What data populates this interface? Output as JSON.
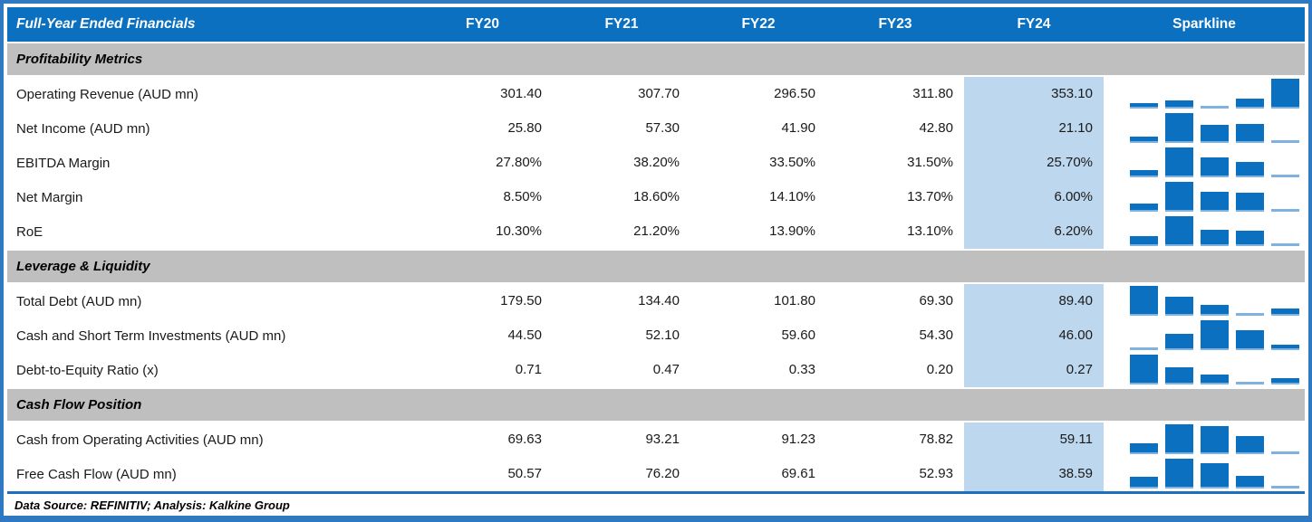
{
  "header": {
    "title": "Full-Year Ended Financials",
    "years": [
      "FY20",
      "FY21",
      "FY22",
      "FY23",
      "FY24"
    ],
    "sparkline_label": "Sparkline"
  },
  "chart_data": {
    "type": "table",
    "title": "Full-Year Ended Financials",
    "columns": [
      "FY20",
      "FY21",
      "FY22",
      "FY23",
      "FY24",
      "Sparkline"
    ],
    "highlighted_column": "FY24",
    "sparkline_style": "bar, per-row min-max scaled",
    "sections": [
      {
        "name": "Profitability Metrics",
        "rows": [
          {
            "label": "Operating Revenue (AUD mn)",
            "display": [
              "301.40",
              "307.70",
              "296.50",
              "311.80",
              "353.10"
            ],
            "values": [
              301.4,
              307.7,
              296.5,
              311.8,
              353.1
            ]
          },
          {
            "label": "Net Income (AUD mn)",
            "display": [
              "25.80",
              "57.30",
              "41.90",
              "42.80",
              "21.10"
            ],
            "values": [
              25.8,
              57.3,
              41.9,
              42.8,
              21.1
            ]
          },
          {
            "label": "EBITDA Margin",
            "display": [
              "27.80%",
              "38.20%",
              "33.50%",
              "31.50%",
              "25.70%"
            ],
            "values": [
              27.8,
              38.2,
              33.5,
              31.5,
              25.7
            ]
          },
          {
            "label": "Net Margin",
            "display": [
              "8.50%",
              "18.60%",
              "14.10%",
              "13.70%",
              "6.00%"
            ],
            "values": [
              8.5,
              18.6,
              14.1,
              13.7,
              6.0
            ]
          },
          {
            "label": "RoE",
            "display": [
              "10.30%",
              "21.20%",
              "13.90%",
              "13.10%",
              "6.20%"
            ],
            "values": [
              10.3,
              21.2,
              13.9,
              13.1,
              6.2
            ]
          }
        ]
      },
      {
        "name": "Leverage & Liquidity",
        "rows": [
          {
            "label": "Total Debt (AUD mn)",
            "display": [
              "179.50",
              "134.40",
              "101.80",
              "69.30",
              "89.40"
            ],
            "values": [
              179.5,
              134.4,
              101.8,
              69.3,
              89.4
            ]
          },
          {
            "label": "Cash and Short Term Investments (AUD mn)",
            "display": [
              "44.50",
              "52.10",
              "59.60",
              "54.30",
              "46.00"
            ],
            "values": [
              44.5,
              52.1,
              59.6,
              54.3,
              46.0
            ]
          },
          {
            "label": "Debt-to-Equity Ratio (x)",
            "display": [
              "0.71",
              "0.47",
              "0.33",
              "0.20",
              "0.27"
            ],
            "values": [
              0.71,
              0.47,
              0.33,
              0.2,
              0.27
            ]
          }
        ]
      },
      {
        "name": "Cash Flow Position",
        "rows": [
          {
            "label": "Cash from Operating Activities (AUD mn)",
            "display": [
              "69.63",
              "93.21",
              "91.23",
              "78.82",
              "59.11"
            ],
            "values": [
              69.63,
              93.21,
              91.23,
              78.82,
              59.11
            ]
          },
          {
            "label": "Free Cash Flow (AUD mn)",
            "display": [
              "50.57",
              "76.20",
              "69.61",
              "52.93",
              "38.59"
            ],
            "values": [
              50.57,
              76.2,
              69.61,
              52.93,
              38.59
            ]
          }
        ]
      }
    ]
  },
  "footer": {
    "text": "Data Source: REFINITIV; Analysis: Kalkine Group"
  },
  "colors": {
    "frame": "#2E79C2",
    "header_bg": "#0B70C0",
    "section_bg": "#BFBFBF",
    "fy24_highlight": "#BDD7EE",
    "bar": "#0B70C0",
    "bar_min": "#7FB2DF",
    "divider": "#1C6FC0"
  }
}
